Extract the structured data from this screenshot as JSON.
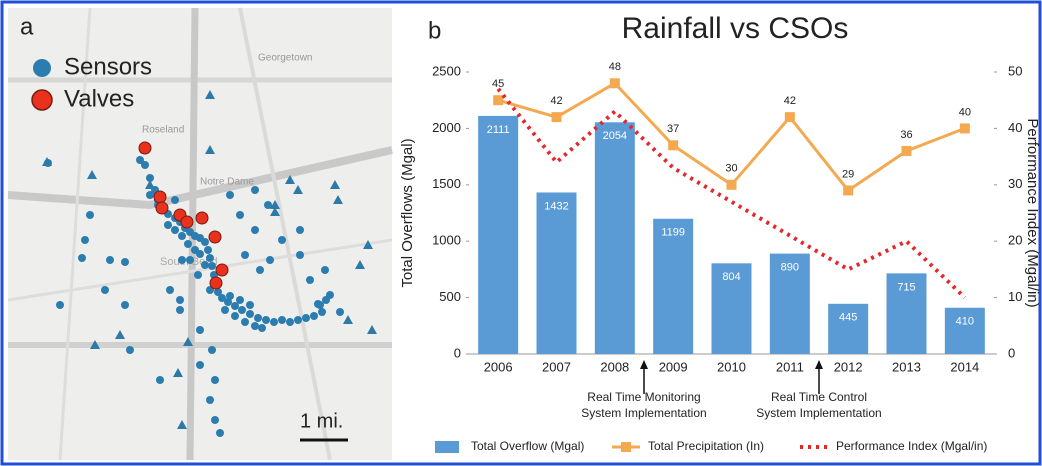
{
  "panel_a": {
    "label": "a",
    "legend": [
      "Sensors",
      "Valves"
    ],
    "places": [
      "Georgetown",
      "Roseland",
      "Notre Dame",
      "South Bend"
    ],
    "scale": "1 mi."
  },
  "chart_data": {
    "type": "bar",
    "panel_label": "b",
    "title": "Rainfall vs CSOs",
    "y_label": "Total Overflows (Mgal)",
    "y2_label": "Performance Index (Mgal/in)",
    "categories": [
      "2006",
      "2007",
      "2008",
      "2009",
      "2010",
      "2011",
      "2012",
      "2013",
      "2014"
    ],
    "series": [
      {
        "name": "Total Overflow (Mgal)",
        "type": "bar",
        "color": "#5b9bd5",
        "values": [
          2111,
          1432,
          2054,
          1199,
          804,
          890,
          445,
          715,
          410
        ]
      },
      {
        "name": "Total Precipitation (In)",
        "type": "line",
        "axis": "y2",
        "color": "#f4a950",
        "values": [
          45,
          42,
          48,
          37,
          30,
          42,
          29,
          36,
          40
        ]
      },
      {
        "name": "Performance Index (Mgal/in)",
        "type": "dotted",
        "axis": "y2",
        "color": "#e8262a",
        "values": [
          47,
          34,
          43,
          33,
          27,
          21,
          15,
          20,
          10
        ]
      }
    ],
    "ylim": [
      0,
      2500
    ],
    "yticks": [
      0,
      500,
      1000,
      1500,
      2000,
      2500
    ],
    "y2lim": [
      0,
      50
    ],
    "y2ticks": [
      0,
      10,
      20,
      30,
      40,
      50
    ],
    "annotations": [
      {
        "lines": [
          "Real Time Monitoring",
          "System Implementation"
        ],
        "after": 2
      },
      {
        "lines": [
          "Real Time Control",
          "System Implementation"
        ],
        "after": 5
      }
    ]
  }
}
